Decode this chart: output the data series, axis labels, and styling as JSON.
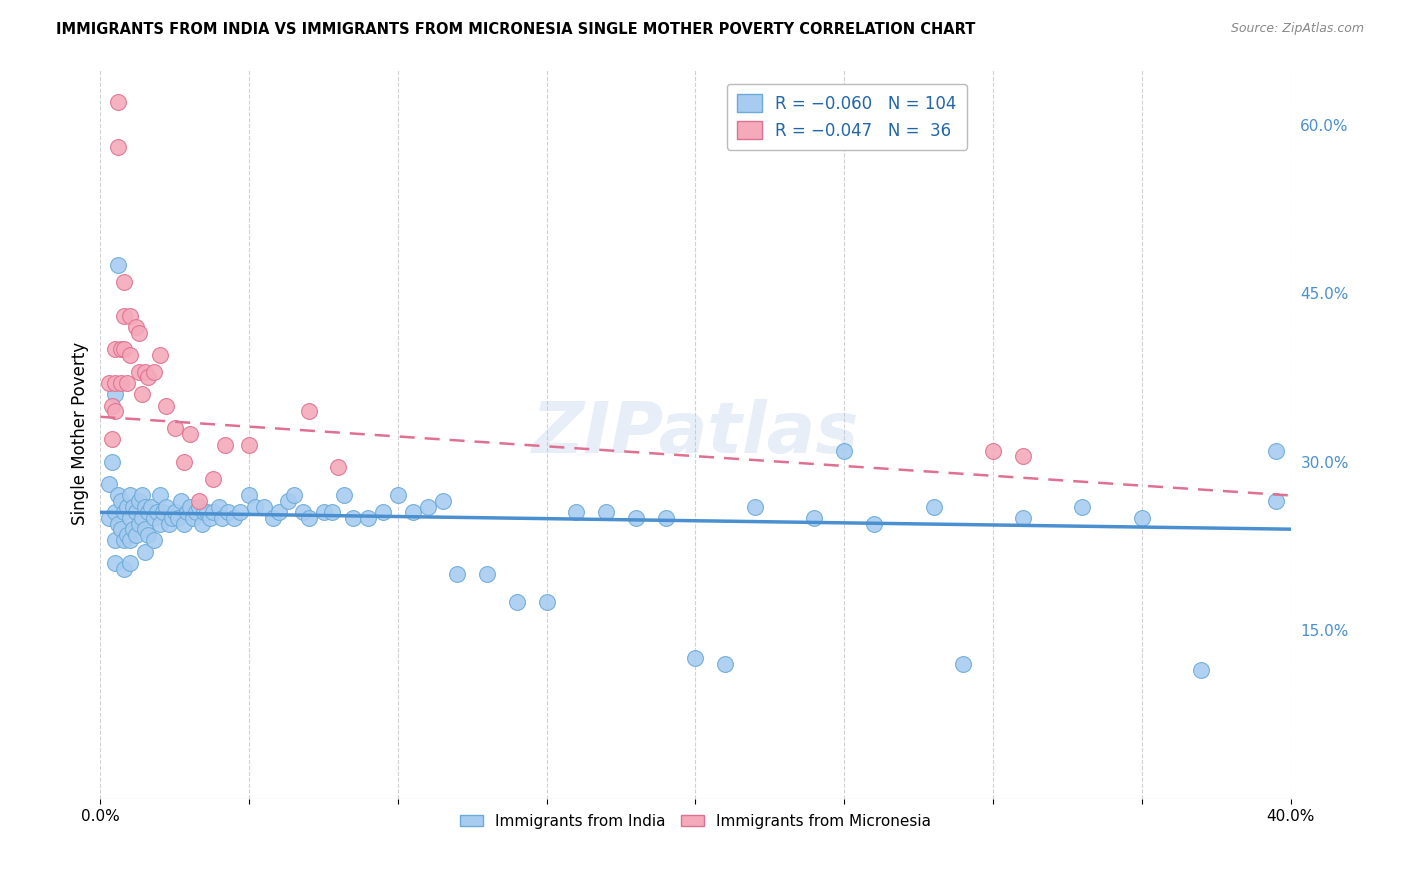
{
  "title": "IMMIGRANTS FROM INDIA VS IMMIGRANTS FROM MICRONESIA SINGLE MOTHER POVERTY CORRELATION CHART",
  "source": "Source: ZipAtlas.com",
  "ylabel": "Single Mother Poverty",
  "xlim": [
    0.0,
    0.4
  ],
  "ylim": [
    0.0,
    0.65
  ],
  "india_color": "#A8CCF0",
  "india_edge_color": "#6AAAD8",
  "micronesia_color": "#F4AABB",
  "micronesia_edge_color": "#E07090",
  "india_line_color": "#4A8FD0",
  "micronesia_line_color": "#E07090",
  "watermark": "ZIPatlas",
  "india_R": -0.06,
  "india_N": 104,
  "micronesia_R": -0.047,
  "micronesia_N": 36,
  "india_line_x0": 0.0,
  "india_line_x1": 0.4,
  "india_line_y0": 0.255,
  "india_line_y1": 0.24,
  "micro_line_x0": 0.0,
  "micro_line_x1": 0.4,
  "micro_line_y0": 0.34,
  "micro_line_y1": 0.27,
  "india_x": [
    0.003,
    0.003,
    0.004,
    0.005,
    0.005,
    0.005,
    0.006,
    0.006,
    0.007,
    0.007,
    0.008,
    0.008,
    0.008,
    0.009,
    0.009,
    0.01,
    0.01,
    0.01,
    0.01,
    0.011,
    0.011,
    0.012,
    0.012,
    0.013,
    0.013,
    0.014,
    0.014,
    0.015,
    0.015,
    0.015,
    0.016,
    0.016,
    0.017,
    0.018,
    0.018,
    0.019,
    0.02,
    0.02,
    0.021,
    0.022,
    0.023,
    0.024,
    0.025,
    0.026,
    0.027,
    0.028,
    0.029,
    0.03,
    0.031,
    0.032,
    0.033,
    0.034,
    0.035,
    0.036,
    0.037,
    0.038,
    0.04,
    0.041,
    0.043,
    0.045,
    0.047,
    0.05,
    0.052,
    0.055,
    0.058,
    0.06,
    0.063,
    0.065,
    0.068,
    0.07,
    0.075,
    0.078,
    0.082,
    0.085,
    0.09,
    0.095,
    0.1,
    0.105,
    0.11,
    0.115,
    0.12,
    0.13,
    0.14,
    0.15,
    0.16,
    0.17,
    0.18,
    0.19,
    0.2,
    0.21,
    0.22,
    0.24,
    0.26,
    0.28,
    0.29,
    0.31,
    0.33,
    0.35,
    0.37,
    0.395,
    0.005,
    0.006,
    0.25,
    0.395
  ],
  "india_y": [
    0.28,
    0.25,
    0.3,
    0.255,
    0.23,
    0.21,
    0.27,
    0.245,
    0.265,
    0.24,
    0.255,
    0.23,
    0.205,
    0.26,
    0.235,
    0.27,
    0.25,
    0.23,
    0.21,
    0.26,
    0.24,
    0.255,
    0.235,
    0.265,
    0.245,
    0.27,
    0.25,
    0.26,
    0.24,
    0.22,
    0.255,
    0.235,
    0.26,
    0.25,
    0.23,
    0.255,
    0.27,
    0.245,
    0.255,
    0.26,
    0.245,
    0.25,
    0.255,
    0.25,
    0.265,
    0.245,
    0.255,
    0.26,
    0.25,
    0.255,
    0.26,
    0.245,
    0.255,
    0.255,
    0.25,
    0.255,
    0.26,
    0.25,
    0.255,
    0.25,
    0.255,
    0.27,
    0.26,
    0.26,
    0.25,
    0.255,
    0.265,
    0.27,
    0.255,
    0.25,
    0.255,
    0.255,
    0.27,
    0.25,
    0.25,
    0.255,
    0.27,
    0.255,
    0.26,
    0.265,
    0.2,
    0.2,
    0.175,
    0.175,
    0.255,
    0.255,
    0.25,
    0.25,
    0.125,
    0.12,
    0.26,
    0.25,
    0.245,
    0.26,
    0.12,
    0.25,
    0.26,
    0.25,
    0.115,
    0.265,
    0.36,
    0.475,
    0.31,
    0.31
  ],
  "micro_x": [
    0.003,
    0.004,
    0.004,
    0.005,
    0.005,
    0.005,
    0.006,
    0.006,
    0.007,
    0.007,
    0.008,
    0.008,
    0.008,
    0.009,
    0.01,
    0.01,
    0.012,
    0.013,
    0.013,
    0.014,
    0.015,
    0.016,
    0.018,
    0.02,
    0.022,
    0.025,
    0.028,
    0.03,
    0.033,
    0.038,
    0.042,
    0.05,
    0.07,
    0.08,
    0.3,
    0.31
  ],
  "micro_y": [
    0.37,
    0.35,
    0.32,
    0.4,
    0.37,
    0.345,
    0.62,
    0.58,
    0.4,
    0.37,
    0.46,
    0.43,
    0.4,
    0.37,
    0.43,
    0.395,
    0.42,
    0.415,
    0.38,
    0.36,
    0.38,
    0.375,
    0.38,
    0.395,
    0.35,
    0.33,
    0.3,
    0.325,
    0.265,
    0.285,
    0.315,
    0.315,
    0.345,
    0.295,
    0.31,
    0.305
  ]
}
